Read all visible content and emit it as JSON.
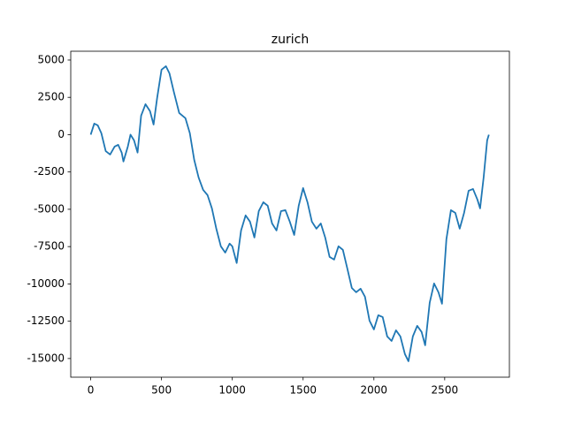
{
  "chart_data": {
    "type": "line",
    "title": "zurich",
    "x": [
      0,
      25,
      50,
      75,
      106,
      137,
      169,
      194,
      219,
      231,
      262,
      281,
      306,
      331,
      356,
      387,
      419,
      444,
      469,
      500,
      531,
      556,
      587,
      625,
      669,
      700,
      731,
      762,
      794,
      825,
      856,
      887,
      919,
      950,
      981,
      1000,
      1031,
      1062,
      1094,
      1125,
      1156,
      1187,
      1219,
      1250,
      1281,
      1312,
      1344,
      1375,
      1406,
      1437,
      1469,
      1500,
      1531,
      1562,
      1594,
      1625,
      1656,
      1687,
      1719,
      1750,
      1781,
      1812,
      1844,
      1875,
      1906,
      1937,
      1969,
      2000,
      2031,
      2062,
      2094,
      2125,
      2156,
      2187,
      2219,
      2244,
      2275,
      2306,
      2337,
      2362,
      2394,
      2425,
      2456,
      2481,
      2512,
      2544,
      2575,
      2606,
      2637,
      2669,
      2700,
      2731,
      2750,
      2775,
      2800,
      2812
    ],
    "series": [
      {
        "color": "#1f77b4",
        "values": [
          0,
          740,
          620,
          100,
          -1100,
          -1330,
          -800,
          -680,
          -1210,
          -1800,
          -800,
          0,
          -380,
          -1200,
          1270,
          2040,
          1570,
          680,
          2450,
          4350,
          4590,
          4110,
          2870,
          1450,
          1100,
          100,
          -1690,
          -2870,
          -3700,
          -4050,
          -4940,
          -6300,
          -7480,
          -7900,
          -7300,
          -7480,
          -8600,
          -6420,
          -5410,
          -5830,
          -6890,
          -5120,
          -4530,
          -4760,
          -5950,
          -6420,
          -5120,
          -5060,
          -5830,
          -6720,
          -4760,
          -3580,
          -4530,
          -5830,
          -6300,
          -5950,
          -6890,
          -8190,
          -8370,
          -7480,
          -7720,
          -8960,
          -10270,
          -10560,
          -10320,
          -10860,
          -12460,
          -13050,
          -12100,
          -12220,
          -13520,
          -13820,
          -13110,
          -13520,
          -14700,
          -15180,
          -13520,
          -12810,
          -13220,
          -14110,
          -11270,
          -9970,
          -10560,
          -11330,
          -7010,
          -5060,
          -5240,
          -6300,
          -5240,
          -3760,
          -3640,
          -4350,
          -4940,
          -2870,
          -380,
          0
        ]
      }
    ],
    "xlim": [
      -141,
      2957
    ],
    "xticks": [
      0,
      500,
      1000,
      1500,
      2000,
      2500
    ],
    "ylim": [
      -16250,
      5590
    ],
    "yticks": [
      5000,
      2500,
      0,
      -2500,
      -5000,
      -7500,
      -10000,
      -12500,
      -15000
    ]
  }
}
